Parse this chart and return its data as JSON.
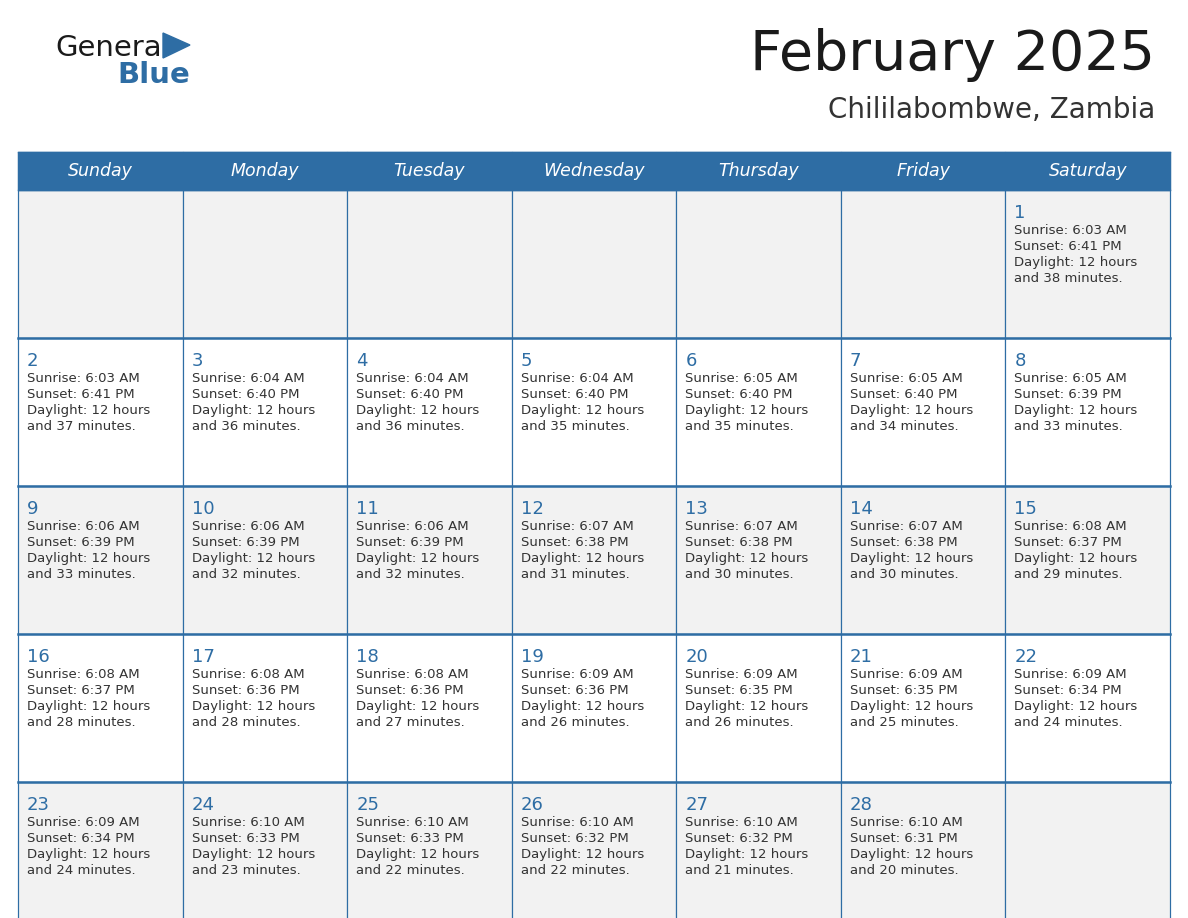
{
  "title": "February 2025",
  "subtitle": "Chililabombwe, Zambia",
  "header_bg": "#2E6DA4",
  "header_text_color": "#FFFFFF",
  "cell_bg_odd": "#F2F2F2",
  "cell_bg_even": "#FFFFFF",
  "border_color": "#2E6DA4",
  "day_headers": [
    "Sunday",
    "Monday",
    "Tuesday",
    "Wednesday",
    "Thursday",
    "Friday",
    "Saturday"
  ],
  "title_color": "#1a1a1a",
  "subtitle_color": "#333333",
  "cell_text_color": "#333333",
  "day_num_color": "#2E6DA4",
  "logo_general_color": "#1a1a1a",
  "logo_blue_color": "#2E6DA4",
  "calendar_data": [
    [
      null,
      null,
      null,
      null,
      null,
      null,
      {
        "day": 1,
        "sunrise": "6:03 AM",
        "sunset": "6:41 PM",
        "daylight_line1": "Daylight: 12 hours",
        "daylight_line2": "and 38 minutes."
      }
    ],
    [
      {
        "day": 2,
        "sunrise": "6:03 AM",
        "sunset": "6:41 PM",
        "daylight_line1": "Daylight: 12 hours",
        "daylight_line2": "and 37 minutes."
      },
      {
        "day": 3,
        "sunrise": "6:04 AM",
        "sunset": "6:40 PM",
        "daylight_line1": "Daylight: 12 hours",
        "daylight_line2": "and 36 minutes."
      },
      {
        "day": 4,
        "sunrise": "6:04 AM",
        "sunset": "6:40 PM",
        "daylight_line1": "Daylight: 12 hours",
        "daylight_line2": "and 36 minutes."
      },
      {
        "day": 5,
        "sunrise": "6:04 AM",
        "sunset": "6:40 PM",
        "daylight_line1": "Daylight: 12 hours",
        "daylight_line2": "and 35 minutes."
      },
      {
        "day": 6,
        "sunrise": "6:05 AM",
        "sunset": "6:40 PM",
        "daylight_line1": "Daylight: 12 hours",
        "daylight_line2": "and 35 minutes."
      },
      {
        "day": 7,
        "sunrise": "6:05 AM",
        "sunset": "6:40 PM",
        "daylight_line1": "Daylight: 12 hours",
        "daylight_line2": "and 34 minutes."
      },
      {
        "day": 8,
        "sunrise": "6:05 AM",
        "sunset": "6:39 PM",
        "daylight_line1": "Daylight: 12 hours",
        "daylight_line2": "and 33 minutes."
      }
    ],
    [
      {
        "day": 9,
        "sunrise": "6:06 AM",
        "sunset": "6:39 PM",
        "daylight_line1": "Daylight: 12 hours",
        "daylight_line2": "and 33 minutes."
      },
      {
        "day": 10,
        "sunrise": "6:06 AM",
        "sunset": "6:39 PM",
        "daylight_line1": "Daylight: 12 hours",
        "daylight_line2": "and 32 minutes."
      },
      {
        "day": 11,
        "sunrise": "6:06 AM",
        "sunset": "6:39 PM",
        "daylight_line1": "Daylight: 12 hours",
        "daylight_line2": "and 32 minutes."
      },
      {
        "day": 12,
        "sunrise": "6:07 AM",
        "sunset": "6:38 PM",
        "daylight_line1": "Daylight: 12 hours",
        "daylight_line2": "and 31 minutes."
      },
      {
        "day": 13,
        "sunrise": "6:07 AM",
        "sunset": "6:38 PM",
        "daylight_line1": "Daylight: 12 hours",
        "daylight_line2": "and 30 minutes."
      },
      {
        "day": 14,
        "sunrise": "6:07 AM",
        "sunset": "6:38 PM",
        "daylight_line1": "Daylight: 12 hours",
        "daylight_line2": "and 30 minutes."
      },
      {
        "day": 15,
        "sunrise": "6:08 AM",
        "sunset": "6:37 PM",
        "daylight_line1": "Daylight: 12 hours",
        "daylight_line2": "and 29 minutes."
      }
    ],
    [
      {
        "day": 16,
        "sunrise": "6:08 AM",
        "sunset": "6:37 PM",
        "daylight_line1": "Daylight: 12 hours",
        "daylight_line2": "and 28 minutes."
      },
      {
        "day": 17,
        "sunrise": "6:08 AM",
        "sunset": "6:36 PM",
        "daylight_line1": "Daylight: 12 hours",
        "daylight_line2": "and 28 minutes."
      },
      {
        "day": 18,
        "sunrise": "6:08 AM",
        "sunset": "6:36 PM",
        "daylight_line1": "Daylight: 12 hours",
        "daylight_line2": "and 27 minutes."
      },
      {
        "day": 19,
        "sunrise": "6:09 AM",
        "sunset": "6:36 PM",
        "daylight_line1": "Daylight: 12 hours",
        "daylight_line2": "and 26 minutes."
      },
      {
        "day": 20,
        "sunrise": "6:09 AM",
        "sunset": "6:35 PM",
        "daylight_line1": "Daylight: 12 hours",
        "daylight_line2": "and 26 minutes."
      },
      {
        "day": 21,
        "sunrise": "6:09 AM",
        "sunset": "6:35 PM",
        "daylight_line1": "Daylight: 12 hours",
        "daylight_line2": "and 25 minutes."
      },
      {
        "day": 22,
        "sunrise": "6:09 AM",
        "sunset": "6:34 PM",
        "daylight_line1": "Daylight: 12 hours",
        "daylight_line2": "and 24 minutes."
      }
    ],
    [
      {
        "day": 23,
        "sunrise": "6:09 AM",
        "sunset": "6:34 PM",
        "daylight_line1": "Daylight: 12 hours",
        "daylight_line2": "and 24 minutes."
      },
      {
        "day": 24,
        "sunrise": "6:10 AM",
        "sunset": "6:33 PM",
        "daylight_line1": "Daylight: 12 hours",
        "daylight_line2": "and 23 minutes."
      },
      {
        "day": 25,
        "sunrise": "6:10 AM",
        "sunset": "6:33 PM",
        "daylight_line1": "Daylight: 12 hours",
        "daylight_line2": "and 22 minutes."
      },
      {
        "day": 26,
        "sunrise": "6:10 AM",
        "sunset": "6:32 PM",
        "daylight_line1": "Daylight: 12 hours",
        "daylight_line2": "and 22 minutes."
      },
      {
        "day": 27,
        "sunrise": "6:10 AM",
        "sunset": "6:32 PM",
        "daylight_line1": "Daylight: 12 hours",
        "daylight_line2": "and 21 minutes."
      },
      {
        "day": 28,
        "sunrise": "6:10 AM",
        "sunset": "6:31 PM",
        "daylight_line1": "Daylight: 12 hours",
        "daylight_line2": "and 20 minutes."
      },
      null
    ]
  ]
}
